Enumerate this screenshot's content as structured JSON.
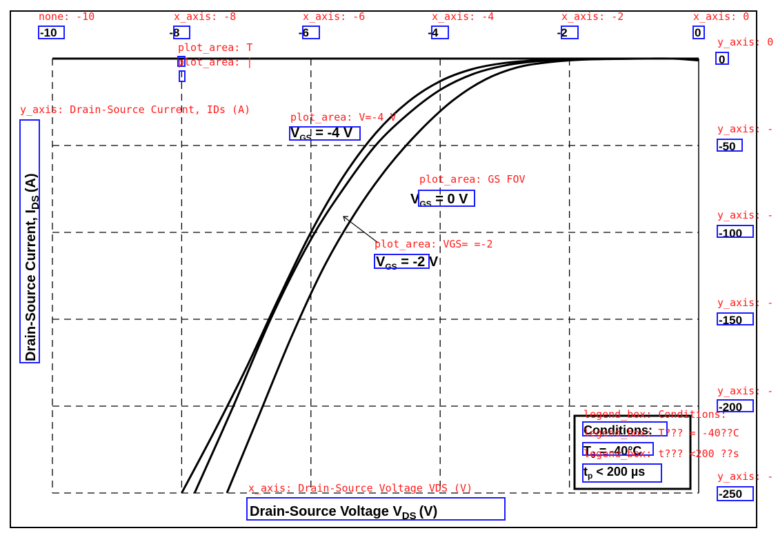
{
  "chart_data": {
    "type": "line",
    "xlabel": "Drain-Source Voltage V",
    "xlabel_sub": "DS",
    "xlabel_unit": "(V)",
    "ylabel": "Drain-Source Current, I",
    "ylabel_sub": "DS",
    "ylabel_unit": "(A)",
    "xlim": [
      -10,
      0
    ],
    "ylim": [
      -250,
      0
    ],
    "x_ticks": [
      "-10",
      "-8",
      "-6",
      "-4",
      "-2",
      "0"
    ],
    "y_ticks": [
      "0",
      "-50",
      "-100",
      "-150",
      "-200",
      "-250"
    ],
    "grid": true,
    "series": [
      {
        "name": "VGS = -4 V",
        "x": [
          -8.0,
          -7.5,
          -7.0,
          -6.5,
          -6.0,
          -5.5,
          -5.0,
          -4.5,
          -4.0,
          -3.5,
          -3.0,
          -2.5,
          -2.0,
          -1.5,
          -1.0,
          -0.5,
          0
        ],
        "y": [
          -250,
          -215,
          -178,
          -138,
          -100,
          -68,
          -43,
          -25,
          -13,
          -6,
          -2.5,
          -1,
          -0.5,
          -0.2,
          0,
          0,
          0
        ]
      },
      {
        "name": "VGS = -2 V",
        "x": [
          -7.8,
          -7.2,
          -6.6,
          -6.0,
          -5.5,
          -5.0,
          -4.5,
          -4.0,
          -3.5,
          -3.0,
          -2.5,
          -2.0,
          -1.5,
          -1.0,
          -0.5,
          0
        ],
        "y": [
          -250,
          -200,
          -148,
          -104,
          -75,
          -50,
          -32,
          -18,
          -9,
          -4,
          -1.5,
          -0.5,
          -0.2,
          0,
          0,
          0
        ]
      },
      {
        "name": "VGS = 0 V",
        "x": [
          -7.3,
          -6.8,
          -6.3,
          -5.8,
          -5.3,
          -4.8,
          -4.3,
          -3.8,
          -3.3,
          -2.8,
          -2.3,
          -1.8,
          -1.3,
          -0.8,
          -0.4,
          0
        ],
        "y": [
          -250,
          -205,
          -160,
          -120,
          -88,
          -62,
          -41,
          -24,
          -12,
          -5,
          -2,
          -0.6,
          -0.2,
          0,
          0,
          -1
        ]
      }
    ],
    "series_labels": [
      {
        "text": "V",
        "sub": "GS",
        "rest": " = -4 V"
      },
      {
        "text": "V",
        "sub": "GS",
        "rest": " = 0 V"
      },
      {
        "text": "V",
        "sub": "GS",
        "rest": " = -2 V"
      }
    ],
    "legend": {
      "title": "Conditions:",
      "line1_main": "T",
      "line1_sub": "J",
      "line1_rest": " = -40°C",
      "line2_main": "t",
      "line2_sub": "p",
      "line2_rest": " < 200 µs",
      "placement": "bottom-right"
    },
    "annotations": [
      "none: -10",
      "x_axis: -8",
      "x_axis: -6",
      "x_axis: -4",
      "x_axis: -2",
      "x_axis: 0",
      "y_axis: 0",
      "y_axis: -",
      "y_axis: -",
      "y_axis: -",
      "y_axis: -",
      "y_axis: -",
      "plot_area: T",
      "plot_area: |",
      "y_axis: Drain-Source Current, IDs (A)",
      "plot_area: V=-4 V",
      "plot_area: GS FOV",
      "plot_area: VGS= =-2",
      "legend_box: Conditions:",
      "legend_box: T??? = -40??C",
      "legend_box: t??? <200 ??s",
      "x_axis: Drain-Source Voltage VDS (V)"
    ]
  }
}
